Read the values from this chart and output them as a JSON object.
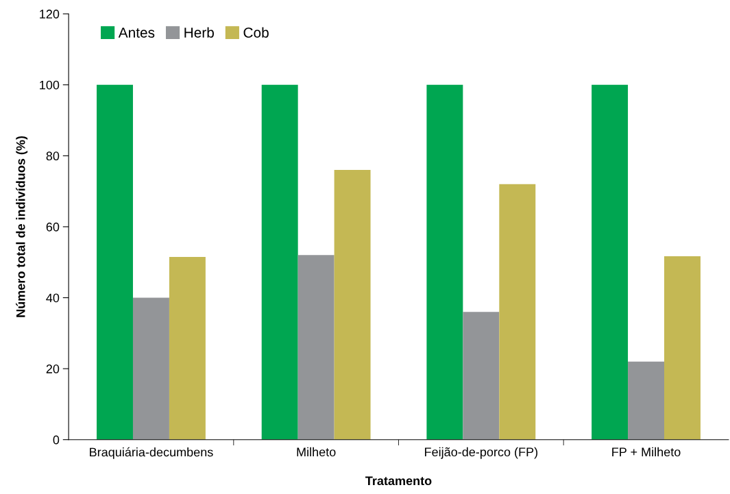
{
  "chart_data": {
    "type": "bar",
    "xlabel": "Tratamento",
    "ylabel": "Número total de indivíduos (%)",
    "categories": [
      "Braquiária-decumbens",
      "Milheto",
      "Feijão-de-porco (FP)",
      "FP + Milheto"
    ],
    "series": [
      {
        "name": "Antes",
        "color": "#00a651",
        "values": [
          100,
          100,
          100,
          100
        ]
      },
      {
        "name": "Herb",
        "color": "#939598",
        "values": [
          40,
          52,
          36,
          22
        ]
      },
      {
        "name": "Cob",
        "color": "#c4b854",
        "values": [
          51.5,
          76,
          72,
          51.7
        ]
      }
    ],
    "ylim": [
      0,
      120
    ],
    "yticks": [
      0,
      20,
      40,
      60,
      80,
      100,
      120
    ],
    "grid": false,
    "legend": "top left"
  }
}
